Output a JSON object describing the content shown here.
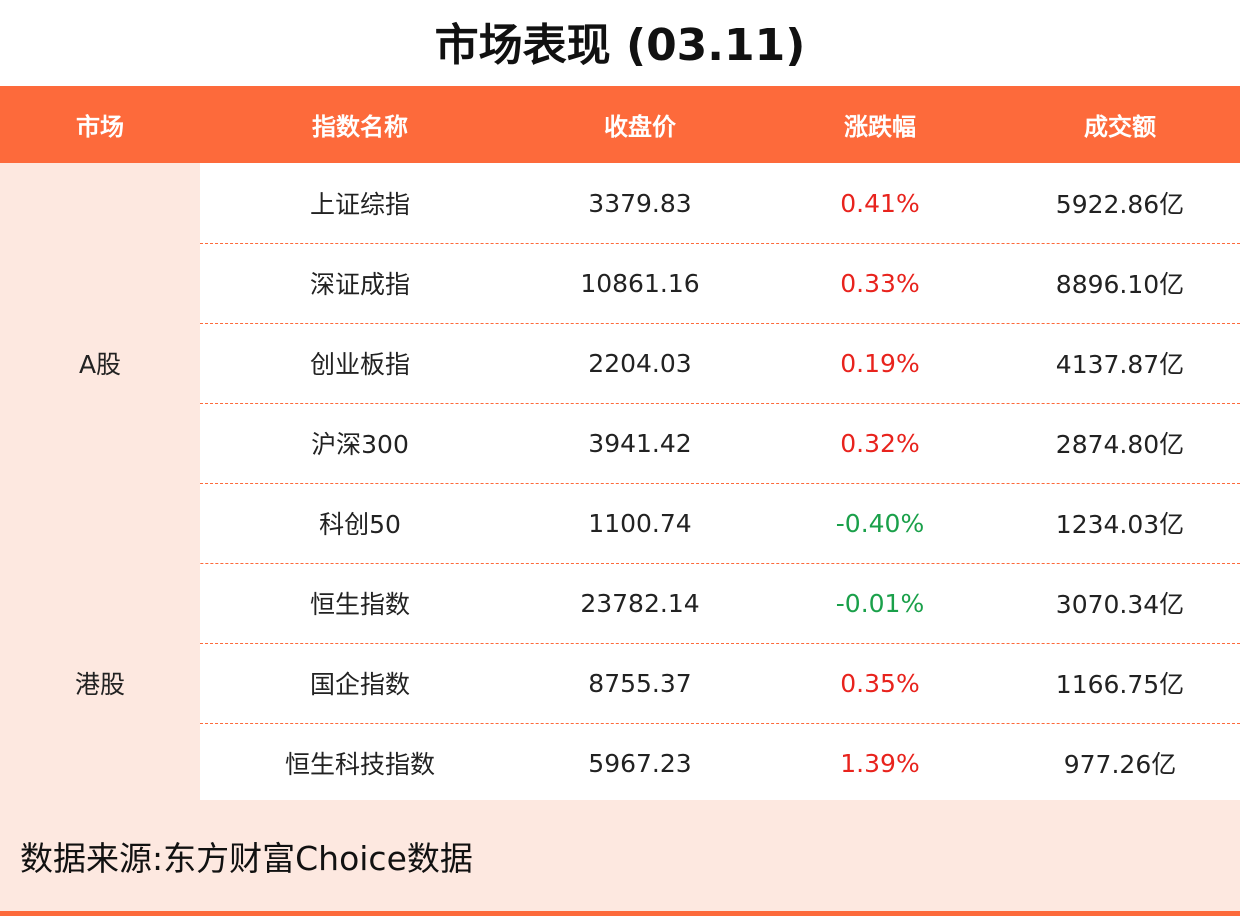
{
  "title": "市场表现 (03.11)",
  "headers": {
    "market": "市场",
    "index_name": "指数名称",
    "close": "收盘价",
    "change": "涨跌幅",
    "turnover": "成交额"
  },
  "markets": [
    {
      "name": "A股",
      "rows": [
        {
          "index": "上证综指",
          "close": "3379.83",
          "change": "0.41%",
          "direction": "up",
          "turnover": "5922.86亿"
        },
        {
          "index": "深证成指",
          "close": "10861.16",
          "change": "0.33%",
          "direction": "up",
          "turnover": "8896.10亿"
        },
        {
          "index": "创业板指",
          "close": "2204.03",
          "change": "0.19%",
          "direction": "up",
          "turnover": "4137.87亿"
        },
        {
          "index": "沪深300",
          "close": "3941.42",
          "change": "0.32%",
          "direction": "up",
          "turnover": "2874.80亿"
        },
        {
          "index": "科创50",
          "close": "1100.74",
          "change": "-0.40%",
          "direction": "down",
          "turnover": "1234.03亿"
        }
      ]
    },
    {
      "name": "港股",
      "rows": [
        {
          "index": "恒生指数",
          "close": "23782.14",
          "change": "-0.01%",
          "direction": "down",
          "turnover": "3070.34亿"
        },
        {
          "index": "国企指数",
          "close": "8755.37",
          "change": "0.35%",
          "direction": "up",
          "turnover": "1166.75亿"
        },
        {
          "index": "恒生科技指数",
          "close": "5967.23",
          "change": "1.39%",
          "direction": "up",
          "turnover": "977.26亿"
        }
      ]
    }
  ],
  "footer": {
    "source": "数据来源:东方财富Choice数据"
  },
  "colors": {
    "accent": "#fd6a3b",
    "market_bg": "#fde8e0",
    "up": "#e8231d",
    "down": "#1aa04a"
  }
}
